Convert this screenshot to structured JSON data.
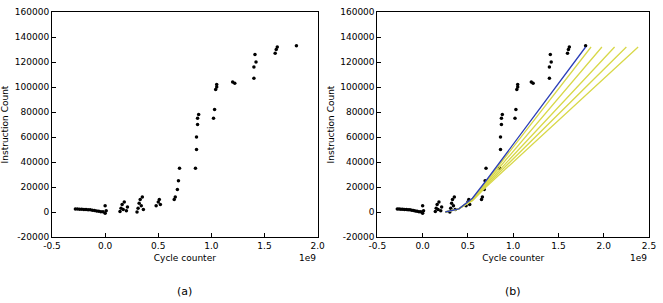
{
  "chart_data": [
    {
      "type": "scatter",
      "caption": "(a)",
      "annotations": [
        "1e9"
      ],
      "x_label": "Cycle counter",
      "y_label": "Instruction Count",
      "xlim": [
        -0.5,
        2.0
      ],
      "xticks": [
        -0.5,
        {
          "value": 0,
          "label": "0.0"
        },
        0.5,
        {
          "value": 1,
          "label": "1.0"
        },
        1.5,
        {
          "value": 2,
          "label": "2.0"
        }
      ],
      "ylim": [
        -20000,
        160000
      ],
      "yticks": [
        -20000,
        0,
        20000,
        40000,
        60000,
        80000,
        100000,
        120000,
        140000,
        160000
      ],
      "grid": false,
      "series": [
        {
          "type": "scatter",
          "color": "#000000",
          "marker": "circle",
          "x": [
            -0.28,
            -0.26,
            -0.24,
            -0.22,
            -0.2,
            -0.18,
            -0.16,
            -0.14,
            -0.12,
            -0.1,
            -0.08,
            -0.06,
            -0.04,
            -0.02,
            0.0,
            0.0,
            0.01,
            0.14,
            0.15,
            0.16,
            0.17,
            0.18,
            0.2,
            0.21,
            0.3,
            0.31,
            0.32,
            0.33,
            0.34,
            0.35,
            0.36,
            0.48,
            0.5,
            0.51,
            0.52,
            0.65,
            0.66,
            0.68,
            0.69,
            0.7,
            0.85,
            0.86,
            0.86,
            0.87,
            0.87,
            0.88,
            1.02,
            1.03,
            1.04,
            1.05,
            1.05,
            1.2,
            1.22,
            1.4,
            1.4,
            1.41,
            1.42,
            1.6,
            1.61,
            1.62,
            1.8
          ],
          "y": [
            2500,
            2400,
            2300,
            2200,
            2100,
            2000,
            1900,
            1800,
            1500,
            1200,
            900,
            600,
            300,
            200,
            5000,
            -1000,
            1000,
            500,
            3000,
            6000,
            2000,
            8000,
            1000,
            4000,
            0,
            3000,
            7000,
            10000,
            5000,
            12000,
            2000,
            5000,
            8000,
            10000,
            6000,
            10000,
            12000,
            18000,
            25000,
            35000,
            35000,
            50000,
            60000,
            70000,
            75000,
            78000,
            75000,
            82000,
            98000,
            100000,
            102000,
            104000,
            103000,
            107000,
            116000,
            126000,
            120000,
            127000,
            130000,
            132000,
            133000
          ]
        }
      ]
    },
    {
      "type": "scatter",
      "caption": "(b)",
      "annotations": [
        "1e9"
      ],
      "x_label": "Cycle counter",
      "y_label": "Instruction Count",
      "xlim": [
        -0.5,
        2.5
      ],
      "xticks": [
        -0.5,
        {
          "value": 0,
          "label": "0.0"
        },
        0.5,
        {
          "value": 1,
          "label": "1.0"
        },
        1.5,
        {
          "value": 2,
          "label": "2.0"
        },
        2.5
      ],
      "ylim": [
        -20000,
        160000
      ],
      "yticks": [
        -20000,
        0,
        20000,
        40000,
        60000,
        80000,
        100000,
        120000,
        140000,
        160000
      ],
      "grid": false,
      "series": [
        {
          "type": "scatter",
          "color": "#000000",
          "marker": "circle",
          "x": [
            -0.28,
            -0.26,
            -0.24,
            -0.22,
            -0.2,
            -0.18,
            -0.16,
            -0.14,
            -0.12,
            -0.1,
            -0.08,
            -0.06,
            -0.04,
            -0.02,
            0.0,
            0.0,
            0.01,
            0.14,
            0.15,
            0.16,
            0.17,
            0.18,
            0.2,
            0.21,
            0.3,
            0.31,
            0.32,
            0.33,
            0.34,
            0.35,
            0.36,
            0.48,
            0.5,
            0.51,
            0.52,
            0.65,
            0.66,
            0.68,
            0.69,
            0.7,
            0.85,
            0.86,
            0.86,
            0.87,
            0.87,
            0.88,
            1.02,
            1.03,
            1.04,
            1.05,
            1.05,
            1.2,
            1.22,
            1.4,
            1.4,
            1.41,
            1.42,
            1.6,
            1.61,
            1.62,
            1.8
          ],
          "y": [
            2500,
            2400,
            2300,
            2200,
            2100,
            2000,
            1900,
            1800,
            1500,
            1200,
            900,
            600,
            300,
            200,
            5000,
            -1000,
            1000,
            500,
            3000,
            6000,
            2000,
            8000,
            1000,
            4000,
            0,
            3000,
            7000,
            10000,
            5000,
            12000,
            2000,
            5000,
            8000,
            10000,
            6000,
            10000,
            12000,
            18000,
            25000,
            35000,
            35000,
            50000,
            60000,
            70000,
            75000,
            78000,
            75000,
            82000,
            98000,
            100000,
            102000,
            104000,
            103000,
            107000,
            116000,
            126000,
            120000,
            127000,
            130000,
            132000,
            133000
          ]
        },
        {
          "type": "line",
          "color": "#d8d84a",
          "line_style": "solid",
          "x": [
            0.25,
            0.4,
            0.55,
            0.7,
            2.38
          ],
          "y": [
            0,
            2500,
            9000,
            20000,
            132000
          ]
        },
        {
          "type": "line",
          "color": "#d8d84a",
          "line_style": "solid",
          "x": [
            0.25,
            0.4,
            0.55,
            0.7,
            2.25
          ],
          "y": [
            0,
            2500,
            9500,
            21000,
            132000
          ]
        },
        {
          "type": "line",
          "color": "#d8d84a",
          "line_style": "solid",
          "x": [
            0.25,
            0.4,
            0.55,
            0.7,
            2.12
          ],
          "y": [
            0,
            2500,
            10000,
            22000,
            132000
          ]
        },
        {
          "type": "line",
          "color": "#d8d84a",
          "line_style": "solid",
          "x": [
            0.25,
            0.4,
            0.55,
            0.7,
            1.98
          ],
          "y": [
            0,
            2500,
            10000,
            23000,
            132000
          ]
        },
        {
          "type": "line",
          "color": "#d8d84a",
          "line_style": "solid",
          "x": [
            0.25,
            0.4,
            0.55,
            0.7,
            1.86
          ],
          "y": [
            0,
            2500,
            10500,
            24000,
            132000
          ]
        },
        {
          "type": "line",
          "color": "#2c3fb8",
          "line_style": "solid",
          "x": [
            0.25,
            0.4,
            0.55,
            0.7,
            1.8
          ],
          "y": [
            0,
            2500,
            11000,
            25000,
            132000
          ]
        }
      ]
    }
  ]
}
